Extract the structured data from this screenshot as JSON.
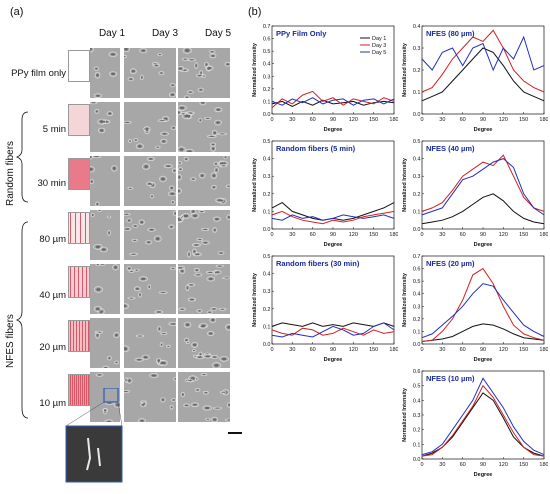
{
  "panels": {
    "a": "(a)",
    "b": "(b)"
  },
  "days": [
    "Day 1",
    "Day 3",
    "Day 5"
  ],
  "rows": [
    "PPy film only",
    "5 min",
    "30 min",
    "80 µm",
    "40 µm",
    "20 µm",
    "10 µm"
  ],
  "groups": {
    "random": "Random fibers",
    "nfes": "NFES fibers"
  },
  "colors": {
    "day1": "#111111",
    "day3": "#d42020",
    "day5": "#2030c0",
    "title": "#1a2a9a"
  },
  "chart_data": [
    {
      "type": "line",
      "title": "PPy Film Only",
      "xlabel": "Degree",
      "ylabel": "Normalized Intensity",
      "xlim": [
        0,
        180
      ],
      "ylim": [
        0,
        0.7
      ],
      "x": [
        0,
        15,
        30,
        45,
        60,
        75,
        90,
        105,
        120,
        135,
        150,
        165,
        180
      ],
      "legend": {
        "entries": [
          "Day 1",
          "Day 3",
          "Day 5"
        ],
        "placement": "top-right"
      },
      "series": [
        {
          "name": "Day 1",
          "values": [
            0.08,
            0.1,
            0.06,
            0.1,
            0.07,
            0.11,
            0.08,
            0.09,
            0.1,
            0.07,
            0.09,
            0.1,
            0.09
          ]
        },
        {
          "name": "Day 3",
          "values": [
            0.05,
            0.12,
            0.08,
            0.15,
            0.18,
            0.1,
            0.13,
            0.07,
            0.12,
            0.1,
            0.08,
            0.13,
            0.1
          ]
        },
        {
          "name": "Day 5",
          "values": [
            0.1,
            0.07,
            0.12,
            0.09,
            0.13,
            0.08,
            0.11,
            0.12,
            0.07,
            0.11,
            0.12,
            0.08,
            0.12
          ]
        }
      ]
    },
    {
      "type": "line",
      "title": "NFES (80 µm)",
      "xlabel": "Degree",
      "ylabel": "Normalized Intensity",
      "xlim": [
        0,
        180
      ],
      "ylim": [
        0,
        0.4
      ],
      "x": [
        0,
        15,
        30,
        45,
        60,
        75,
        90,
        105,
        120,
        135,
        150,
        165,
        180
      ],
      "series": [
        {
          "name": "Day 1",
          "values": [
            0.06,
            0.08,
            0.1,
            0.15,
            0.2,
            0.25,
            0.3,
            0.28,
            0.22,
            0.15,
            0.1,
            0.08,
            0.06
          ]
        },
        {
          "name": "Day 3",
          "values": [
            0.1,
            0.12,
            0.18,
            0.25,
            0.3,
            0.35,
            0.33,
            0.38,
            0.3,
            0.2,
            0.15,
            0.12,
            0.1
          ]
        },
        {
          "name": "Day 5",
          "values": [
            0.25,
            0.2,
            0.28,
            0.3,
            0.22,
            0.3,
            0.32,
            0.2,
            0.3,
            0.25,
            0.35,
            0.2,
            0.22
          ]
        }
      ]
    },
    {
      "type": "line",
      "title": "Random fibers (5 min)",
      "xlabel": "Degree",
      "ylabel": "Normalized Intensity",
      "xlim": [
        0,
        180
      ],
      "ylim": [
        0,
        0.5
      ],
      "x": [
        0,
        15,
        30,
        45,
        60,
        75,
        90,
        105,
        120,
        135,
        150,
        165,
        180
      ],
      "series": [
        {
          "name": "Day 1",
          "values": [
            0.12,
            0.15,
            0.1,
            0.08,
            0.06,
            0.05,
            0.06,
            0.05,
            0.06,
            0.08,
            0.1,
            0.12,
            0.15
          ]
        },
        {
          "name": "Day 3",
          "values": [
            0.08,
            0.1,
            0.07,
            0.05,
            0.04,
            0.03,
            0.05,
            0.04,
            0.05,
            0.07,
            0.08,
            0.09,
            0.1
          ]
        },
        {
          "name": "Day 5",
          "values": [
            0.06,
            0.05,
            0.08,
            0.06,
            0.07,
            0.05,
            0.06,
            0.08,
            0.07,
            0.06,
            0.07,
            0.08,
            0.06
          ]
        }
      ]
    },
    {
      "type": "line",
      "title": "NFES (40 µm)",
      "xlabel": "Degree",
      "ylabel": "Normalized Intensity",
      "xlim": [
        0,
        180
      ],
      "ylim": [
        0,
        0.5
      ],
      "x": [
        0,
        15,
        30,
        45,
        60,
        75,
        90,
        105,
        120,
        135,
        150,
        165,
        180
      ],
      "series": [
        {
          "name": "Day 1",
          "values": [
            0.03,
            0.04,
            0.05,
            0.07,
            0.1,
            0.14,
            0.18,
            0.2,
            0.16,
            0.1,
            0.06,
            0.04,
            0.03
          ]
        },
        {
          "name": "Day 3",
          "values": [
            0.1,
            0.12,
            0.15,
            0.22,
            0.3,
            0.34,
            0.38,
            0.36,
            0.42,
            0.3,
            0.18,
            0.12,
            0.1
          ]
        },
        {
          "name": "Day 5",
          "values": [
            0.08,
            0.1,
            0.12,
            0.2,
            0.28,
            0.3,
            0.34,
            0.38,
            0.4,
            0.35,
            0.2,
            0.12,
            0.08
          ]
        }
      ]
    },
    {
      "type": "line",
      "title": "Random fibers (30 min)",
      "xlabel": "Degree",
      "ylabel": "Normalized Intensity",
      "xlim": [
        0,
        180
      ],
      "ylim": [
        0,
        0.5
      ],
      "x": [
        0,
        15,
        30,
        45,
        60,
        75,
        90,
        105,
        120,
        135,
        150,
        165,
        180
      ],
      "series": [
        {
          "name": "Day 1",
          "values": [
            0.1,
            0.12,
            0.11,
            0.1,
            0.12,
            0.1,
            0.11,
            0.1,
            0.12,
            0.11,
            0.1,
            0.12,
            0.1
          ]
        },
        {
          "name": "Day 3",
          "values": [
            0.08,
            0.06,
            0.05,
            0.09,
            0.08,
            0.05,
            0.06,
            0.09,
            0.07,
            0.05,
            0.08,
            0.06,
            0.07
          ]
        },
        {
          "name": "Day 5",
          "values": [
            0.05,
            0.04,
            0.06,
            0.05,
            0.04,
            0.07,
            0.1,
            0.08,
            0.05,
            0.06,
            0.1,
            0.12,
            0.08
          ]
        }
      ]
    },
    {
      "type": "line",
      "title": "NFES (20 µm)",
      "xlabel": "Degree",
      "ylabel": "Normalized Intensity",
      "xlim": [
        0,
        180
      ],
      "ylim": [
        0,
        0.7
      ],
      "x": [
        0,
        15,
        30,
        45,
        60,
        75,
        90,
        105,
        120,
        135,
        150,
        165,
        180
      ],
      "series": [
        {
          "name": "Day 1",
          "values": [
            0.02,
            0.03,
            0.04,
            0.06,
            0.1,
            0.14,
            0.16,
            0.15,
            0.12,
            0.08,
            0.05,
            0.04,
            0.03
          ]
        },
        {
          "name": "Day 3",
          "values": [
            0.02,
            0.03,
            0.1,
            0.2,
            0.35,
            0.55,
            0.6,
            0.48,
            0.3,
            0.15,
            0.08,
            0.05,
            0.03
          ]
        },
        {
          "name": "Day 5",
          "values": [
            0.05,
            0.08,
            0.15,
            0.22,
            0.3,
            0.4,
            0.48,
            0.46,
            0.35,
            0.25,
            0.15,
            0.1,
            0.06
          ]
        }
      ]
    },
    {
      "type": "line",
      "title": "NFES (10 µm)",
      "xlabel": "Degree",
      "ylabel": "Normalized Intensity",
      "xlim": [
        0,
        180
      ],
      "ylim": [
        0,
        0.6
      ],
      "x": [
        0,
        15,
        30,
        45,
        60,
        75,
        90,
        105,
        120,
        135,
        150,
        165,
        180
      ],
      "series": [
        {
          "name": "Day 1",
          "values": [
            0.02,
            0.04,
            0.08,
            0.15,
            0.25,
            0.35,
            0.45,
            0.4,
            0.28,
            0.15,
            0.08,
            0.04,
            0.02
          ]
        },
        {
          "name": "Day 3",
          "values": [
            0.02,
            0.03,
            0.08,
            0.16,
            0.26,
            0.36,
            0.5,
            0.42,
            0.3,
            0.18,
            0.08,
            0.03,
            0.02
          ]
        },
        {
          "name": "Day 5",
          "values": [
            0.03,
            0.05,
            0.1,
            0.2,
            0.3,
            0.4,
            0.55,
            0.45,
            0.35,
            0.22,
            0.12,
            0.06,
            0.03
          ]
        }
      ]
    }
  ]
}
